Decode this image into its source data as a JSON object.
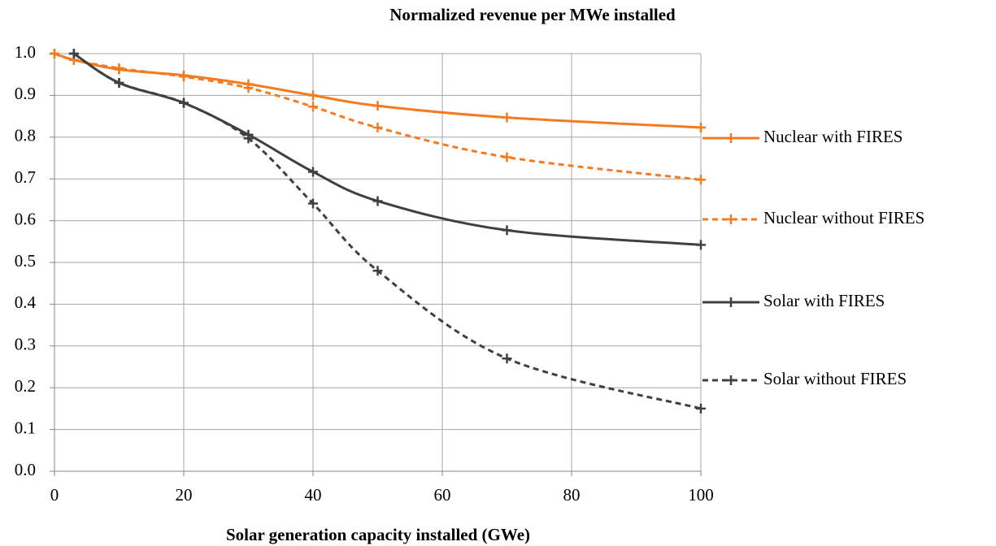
{
  "chart_data": {
    "type": "line",
    "title": "Normalized revenue per MWe installed",
    "x_label": "Solar generation capacity installed (GWe)",
    "x": [
      0,
      3,
      10,
      20,
      30,
      40,
      50,
      70,
      100
    ],
    "series": [
      {
        "name": "Nuclear with FIRES",
        "color": "#f47b20",
        "dash": false,
        "values": [
          1.0,
          0.985,
          0.962,
          0.948,
          0.927,
          0.9,
          0.875,
          0.847,
          0.823
        ]
      },
      {
        "name": "Nuclear without FIRES",
        "color": "#f47b20",
        "dash": true,
        "values": [
          1.0,
          0.985,
          0.965,
          0.945,
          0.918,
          0.873,
          0.823,
          0.752,
          0.698
        ]
      },
      {
        "name": "Solar with FIRES",
        "color": "#404040",
        "dash": false,
        "values": [
          null,
          1.0,
          0.93,
          0.882,
          0.806,
          0.717,
          0.647,
          0.577,
          0.542
        ]
      },
      {
        "name": "Solar without FIRES",
        "color": "#404040",
        "dash": true,
        "values": [
          null,
          1.0,
          0.93,
          0.882,
          0.797,
          0.641,
          0.48,
          0.27,
          0.15
        ]
      }
    ],
    "xlim": [
      0,
      100
    ],
    "xticks": [
      0,
      20,
      40,
      60,
      80,
      100
    ],
    "ylim": [
      0,
      1
    ],
    "yticks": [
      {
        "value": 0,
        "label": "0.0"
      },
      0.1,
      0.2,
      0.3,
      0.4,
      0.5,
      0.6,
      0.7,
      0.8,
      0.9,
      {
        "value": 1,
        "label": "1.0"
      }
    ],
    "grid": true
  }
}
